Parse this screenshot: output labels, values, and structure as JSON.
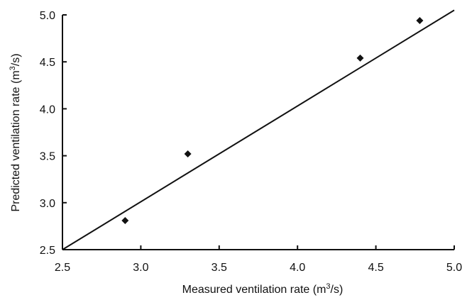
{
  "chart_data": {
    "type": "scatter",
    "title": "",
    "xlabel_prefix": "Measured ventilation rate (m",
    "xlabel_sup": "3",
    "xlabel_suffix": "/s)",
    "ylabel_prefix": "Predicted ventilation rate (m",
    "ylabel_sup": "3",
    "ylabel_suffix": "/s)",
    "xlim": [
      2.5,
      5.0
    ],
    "ylim": [
      2.5,
      5.0
    ],
    "x_ticks": [
      "2.5",
      "3.0",
      "3.5",
      "4.0",
      "4.5",
      "5.0"
    ],
    "y_ticks": [
      "2.5",
      "3.0",
      "3.5",
      "4.0",
      "4.5",
      "5.0"
    ],
    "grid": false,
    "legend": "none",
    "series": [
      {
        "marker": "diamond",
        "x": [
          2.9,
          3.3,
          4.4,
          4.78
        ],
        "y": [
          2.81,
          3.52,
          4.54,
          4.94
        ]
      }
    ],
    "fit_line": {
      "x": [
        2.5,
        5.0
      ],
      "y": [
        2.5,
        5.05
      ]
    }
  }
}
